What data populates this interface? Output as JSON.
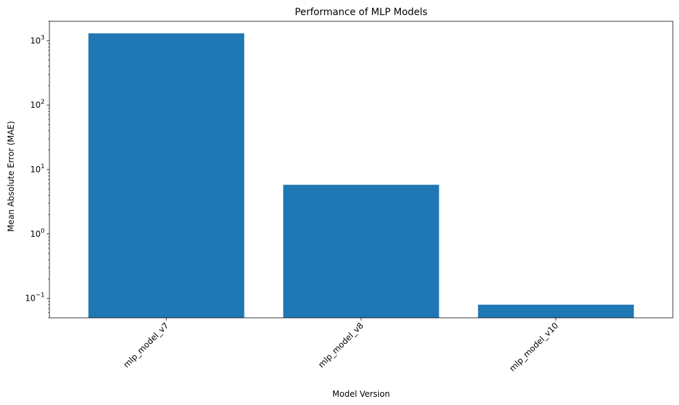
{
  "chart_data": {
    "type": "bar",
    "title": "Performance of MLP Models",
    "xlabel": "Model Version",
    "ylabel": "Mean Absolute Error (MAE)",
    "yscale": "log",
    "ylim": [
      0.05,
      2000
    ],
    "categories": [
      "mlp_model_v7",
      "mlp_model_v8",
      "mlp_model_v10"
    ],
    "values": [
      1300,
      5.8,
      0.08
    ],
    "yticks": [
      {
        "value": 0.1,
        "base": "10",
        "exp": "−1"
      },
      {
        "value": 1,
        "base": "10",
        "exp": "0"
      },
      {
        "value": 10,
        "base": "10",
        "exp": "1"
      },
      {
        "value": 100,
        "base": "10",
        "exp": "2"
      },
      {
        "value": 1000,
        "base": "10",
        "exp": "3"
      }
    ],
    "bar_color": "#1f77b4",
    "grid": false,
    "legend": "none"
  }
}
